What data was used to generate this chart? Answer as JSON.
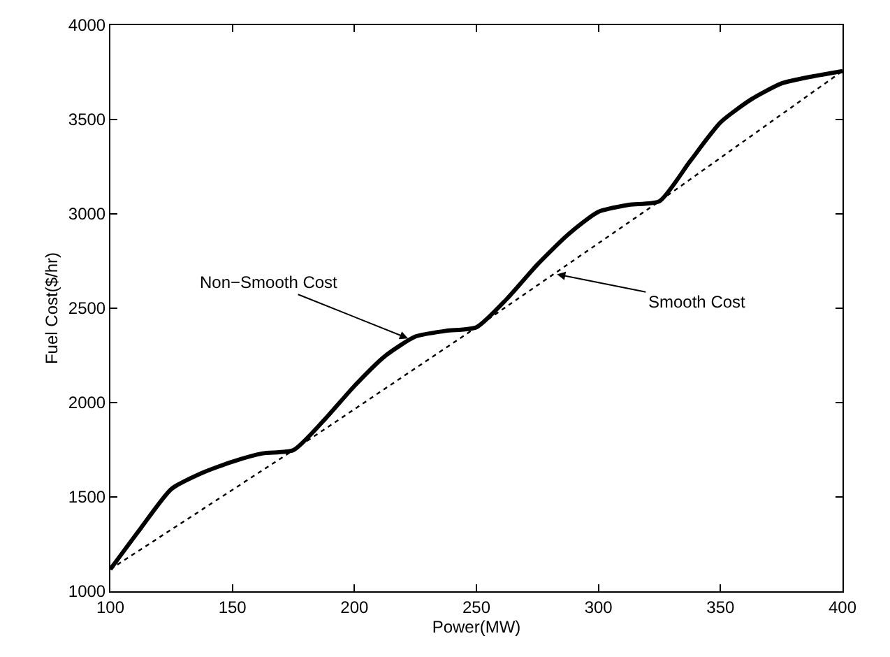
{
  "chart_data": {
    "type": "line",
    "xlabel": "Power(MW)",
    "ylabel": "Fuel Cost($/hr)",
    "xlim": [
      100,
      400
    ],
    "xticks": [
      100,
      150,
      200,
      250,
      300,
      350,
      400
    ],
    "ylim": [
      1000,
      4000
    ],
    "yticks": [
      1000,
      1500,
      2000,
      2500,
      3000,
      3500,
      4000
    ],
    "marker": "none",
    "series": [
      {
        "color": "#000000",
        "line_style": "solid",
        "x": [
          100,
          112.5,
          125,
          137.5,
          150,
          162.5,
          175,
          187.5,
          200,
          212.5,
          225,
          237.5,
          250,
          262.5,
          275,
          287.5,
          300,
          312.5,
          325,
          337.5,
          350,
          362.5,
          375,
          387.5,
          400
        ],
        "values": [
          1117,
          1335,
          1542,
          1627,
          1687,
          1731,
          1748,
          1906,
          2088,
          2246,
          2350,
          2380,
          2399,
          2550,
          2732,
          2890,
          3011,
          3048,
          3067,
          3278,
          3485,
          3606,
          3691,
          3728,
          3757
        ]
      },
      {
        "color": "#000000",
        "line_style": "dotted",
        "x": [
          100,
          175,
          250,
          325,
          400
        ],
        "values": [
          1117,
          1748,
          2399,
          3067,
          3757
        ]
      }
    ],
    "annotations": [
      {
        "text": "Non−Smooth Cost",
        "x": 222,
        "y": 2340
      },
      {
        "text": "Smooth Cost",
        "x": 283,
        "y": 2680
      }
    ]
  }
}
